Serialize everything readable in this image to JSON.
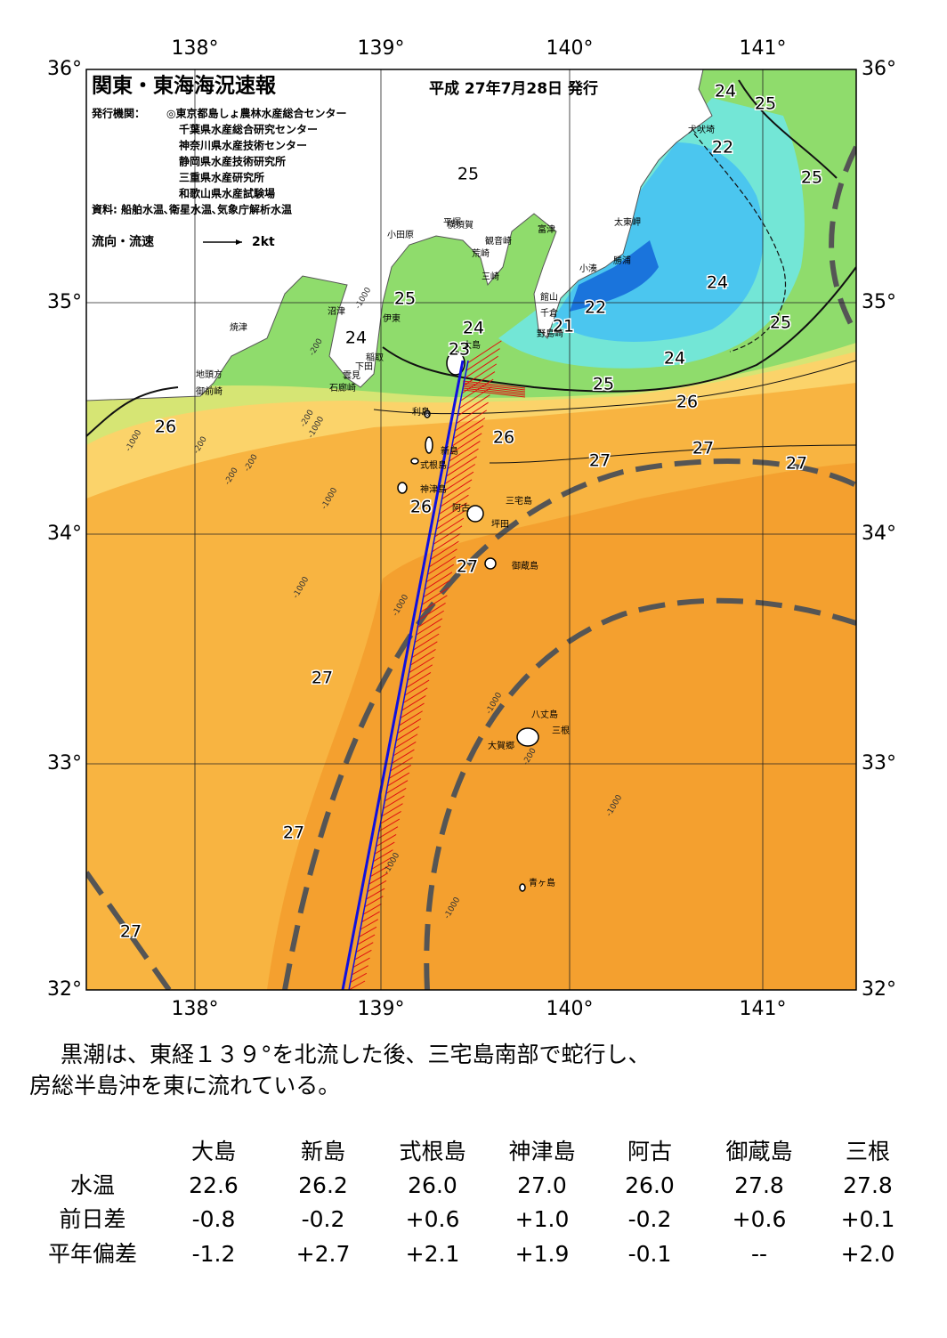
{
  "header": {
    "title": "関東・東海海況速報",
    "issue_date": "平成 27年7月28日 発行",
    "issuer_label": "発行機関：",
    "issuers": [
      "◎東京都島しょ農林水産総合センター",
      "千葉県水産総合研究センター",
      "神奈川県水産技術センター",
      "静岡県水産技術研究所",
      "三重県水産研究所",
      "和歌山県水産試験場"
    ],
    "source": "資料: 船舶水温､衛星水温､気象庁解析水温"
  },
  "legend": {
    "label": "流向・流速",
    "scale": "2kt"
  },
  "map": {
    "lon_labels": [
      "138°",
      "139°",
      "140°",
      "141°"
    ],
    "lat_labels": [
      "36°",
      "35°",
      "34°",
      "33°",
      "32°"
    ],
    "isotherm_labels": [
      "24",
      "25",
      "22",
      "25",
      "25",
      "25",
      "24",
      "22",
      "21",
      "25",
      "24",
      "24",
      "23",
      "24",
      "25",
      "26",
      "26",
      "26",
      "27",
      "27",
      "27",
      "26",
      "27",
      "27",
      "27",
      "27"
    ],
    "place_names": [
      "犬吠埼",
      "太東岬",
      "勝浦",
      "小湊",
      "富津",
      "横須賀",
      "観音崎",
      "平塚",
      "小田原",
      "荒崎",
      "三崎",
      "館山",
      "千倉",
      "野島崎",
      "大島",
      "沼津",
      "伊東",
      "焼津",
      "稲取",
      "下田",
      "雲見",
      "石廊崎",
      "地頭方",
      "御前崎",
      "利島",
      "新島",
      "式根島",
      "神津島",
      "三宅島",
      "阿古",
      "坪田",
      "御蔵島",
      "八丈島",
      "三根",
      "大賀郷",
      "青ヶ島"
    ],
    "depth_labels": [
      "-200",
      "-1000",
      "-200",
      "-1000",
      "-200",
      "-1000",
      "-200",
      "-1000",
      "-1000",
      "-1000",
      "-200",
      "-1000",
      "-1000",
      "-1000",
      "-200",
      "-1000"
    ]
  },
  "summary": [
    "黒潮は、東経１３９°を北流した後、三宅島南部で蛇行し、",
    "房総半島沖を東に流れている。"
  ],
  "table": {
    "columns": [
      "大島",
      "新島",
      "式根島",
      "神津島",
      "阿古",
      "御蔵島",
      "三根"
    ],
    "rows": [
      {
        "label": "水温",
        "values": [
          "22.6",
          "26.2",
          "26.0",
          "27.0",
          "26.0",
          "27.8",
          "27.8"
        ]
      },
      {
        "label": "前日差",
        "values": [
          "-0.8",
          "-0.2",
          "+0.6",
          "+1.0",
          "-0.2",
          "+0.6",
          "+0.1"
        ]
      },
      {
        "label": "平年偏差",
        "values": [
          "-1.2",
          "+2.7",
          "+2.1",
          "+1.9",
          "-0.1",
          "--",
          "+2.0"
        ]
      }
    ]
  }
}
